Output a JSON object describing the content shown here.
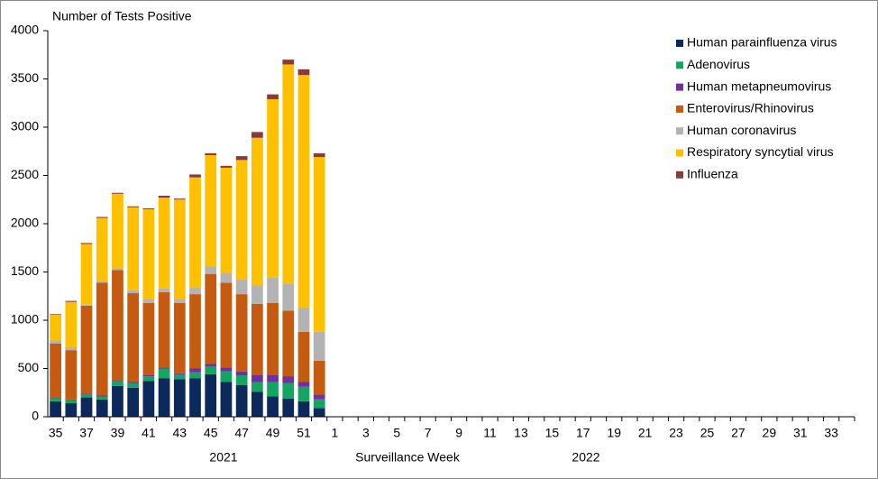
{
  "chart_data": {
    "type": "stacked_bar",
    "y_axis_label": "Number of Tests Positive",
    "x_axis_label": "Surveillance Week",
    "annotations": [
      "2021",
      "2022"
    ],
    "categories": [
      "35",
      null,
      "37",
      null,
      "39",
      null,
      "41",
      null,
      "43",
      null,
      "45",
      null,
      "47",
      null,
      "49",
      null,
      "51",
      null,
      "1",
      null,
      "3",
      null,
      "5",
      null,
      "7",
      null,
      "9",
      null,
      "11",
      null,
      "13",
      null,
      "15",
      null,
      "17",
      null,
      "19",
      null,
      "21",
      null,
      "23",
      null,
      "25",
      null,
      "27",
      null,
      "29",
      null,
      "31",
      null,
      "33",
      null
    ],
    "series": [
      {
        "name": "Human parainfluenza virus",
        "color": "#0b2a5b",
        "values": [
          160,
          140,
          200,
          180,
          320,
          300,
          370,
          400,
          390,
          400,
          440,
          360,
          330,
          260,
          210,
          190,
          160,
          90,
          null,
          null,
          null,
          null,
          null,
          null,
          null,
          null,
          null,
          null,
          null,
          null,
          null,
          null,
          null,
          null,
          null,
          null,
          null,
          null,
          null,
          null,
          null,
          null,
          null,
          null,
          null,
          null,
          null,
          null,
          null,
          null,
          null,
          null
        ]
      },
      {
        "name": "Adenovirus",
        "color": "#13a561",
        "values": [
          30,
          30,
          30,
          30,
          50,
          50,
          50,
          100,
          50,
          60,
          80,
          110,
          100,
          100,
          150,
          160,
          150,
          90,
          null,
          null,
          null,
          null,
          null,
          null,
          null,
          null,
          null,
          null,
          null,
          null,
          null,
          null,
          null,
          null,
          null,
          null,
          null,
          null,
          null,
          null,
          null,
          null,
          null,
          null,
          null,
          null,
          null,
          null,
          null,
          null,
          null,
          null
        ]
      },
      {
        "name": "Human metapneumovirus",
        "color": "#7030a0",
        "values": [
          10,
          10,
          10,
          10,
          10,
          10,
          10,
          10,
          10,
          40,
          30,
          40,
          40,
          70,
          70,
          70,
          50,
          50,
          null,
          null,
          null,
          null,
          null,
          null,
          null,
          null,
          null,
          null,
          null,
          null,
          null,
          null,
          null,
          null,
          null,
          null,
          null,
          null,
          null,
          null,
          null,
          null,
          null,
          null,
          null,
          null,
          null,
          null,
          null,
          null,
          null,
          null
        ]
      },
      {
        "name": "Enterovirus/Rhinovirus",
        "color": "#c55a11",
        "values": [
          560,
          510,
          910,
          1170,
          1140,
          920,
          750,
          780,
          730,
          770,
          930,
          880,
          800,
          740,
          750,
          680,
          520,
          350,
          null,
          null,
          null,
          null,
          null,
          null,
          null,
          null,
          null,
          null,
          null,
          null,
          null,
          null,
          null,
          null,
          null,
          null,
          null,
          null,
          null,
          null,
          null,
          null,
          null,
          null,
          null,
          null,
          null,
          null,
          null,
          null,
          null,
          null
        ]
      },
      {
        "name": "Human coronavirus",
        "color": "#b3b3b3",
        "values": [
          30,
          30,
          10,
          20,
          20,
          30,
          40,
          40,
          40,
          70,
          80,
          100,
          150,
          190,
          260,
          280,
          250,
          300,
          null,
          null,
          null,
          null,
          null,
          null,
          null,
          null,
          null,
          null,
          null,
          null,
          null,
          null,
          null,
          null,
          null,
          null,
          null,
          null,
          null,
          null,
          null,
          null,
          null,
          null,
          null,
          null,
          null,
          null,
          null,
          null,
          null,
          null
        ]
      },
      {
        "name": "Respiratory syncytial virus",
        "color": "#ffc000",
        "values": [
          270,
          470,
          630,
          650,
          770,
          860,
          930,
          940,
          1030,
          1140,
          1150,
          1090,
          1240,
          1530,
          1850,
          2270,
          2410,
          1810,
          null,
          null,
          null,
          null,
          null,
          null,
          null,
          null,
          null,
          null,
          null,
          null,
          null,
          null,
          null,
          null,
          null,
          null,
          null,
          null,
          null,
          null,
          null,
          null,
          null,
          null,
          null,
          null,
          null,
          null,
          null,
          null,
          null,
          null
        ]
      },
      {
        "name": "Influenza",
        "color": "#8b3a3a",
        "values": [
          5,
          10,
          10,
          10,
          10,
          10,
          10,
          20,
          10,
          30,
          20,
          20,
          40,
          60,
          50,
          50,
          60,
          40,
          null,
          null,
          null,
          null,
          null,
          null,
          null,
          null,
          null,
          null,
          null,
          null,
          null,
          null,
          null,
          null,
          null,
          null,
          null,
          null,
          null,
          null,
          null,
          null,
          null,
          null,
          null,
          null,
          null,
          null,
          null,
          null,
          null,
          null
        ]
      }
    ],
    "ylim": [
      0,
      4000
    ],
    "yticks": [
      0,
      500,
      1000,
      1500,
      2000,
      2500,
      3000,
      3500,
      4000
    ],
    "grid": false,
    "legend": "top-right"
  }
}
